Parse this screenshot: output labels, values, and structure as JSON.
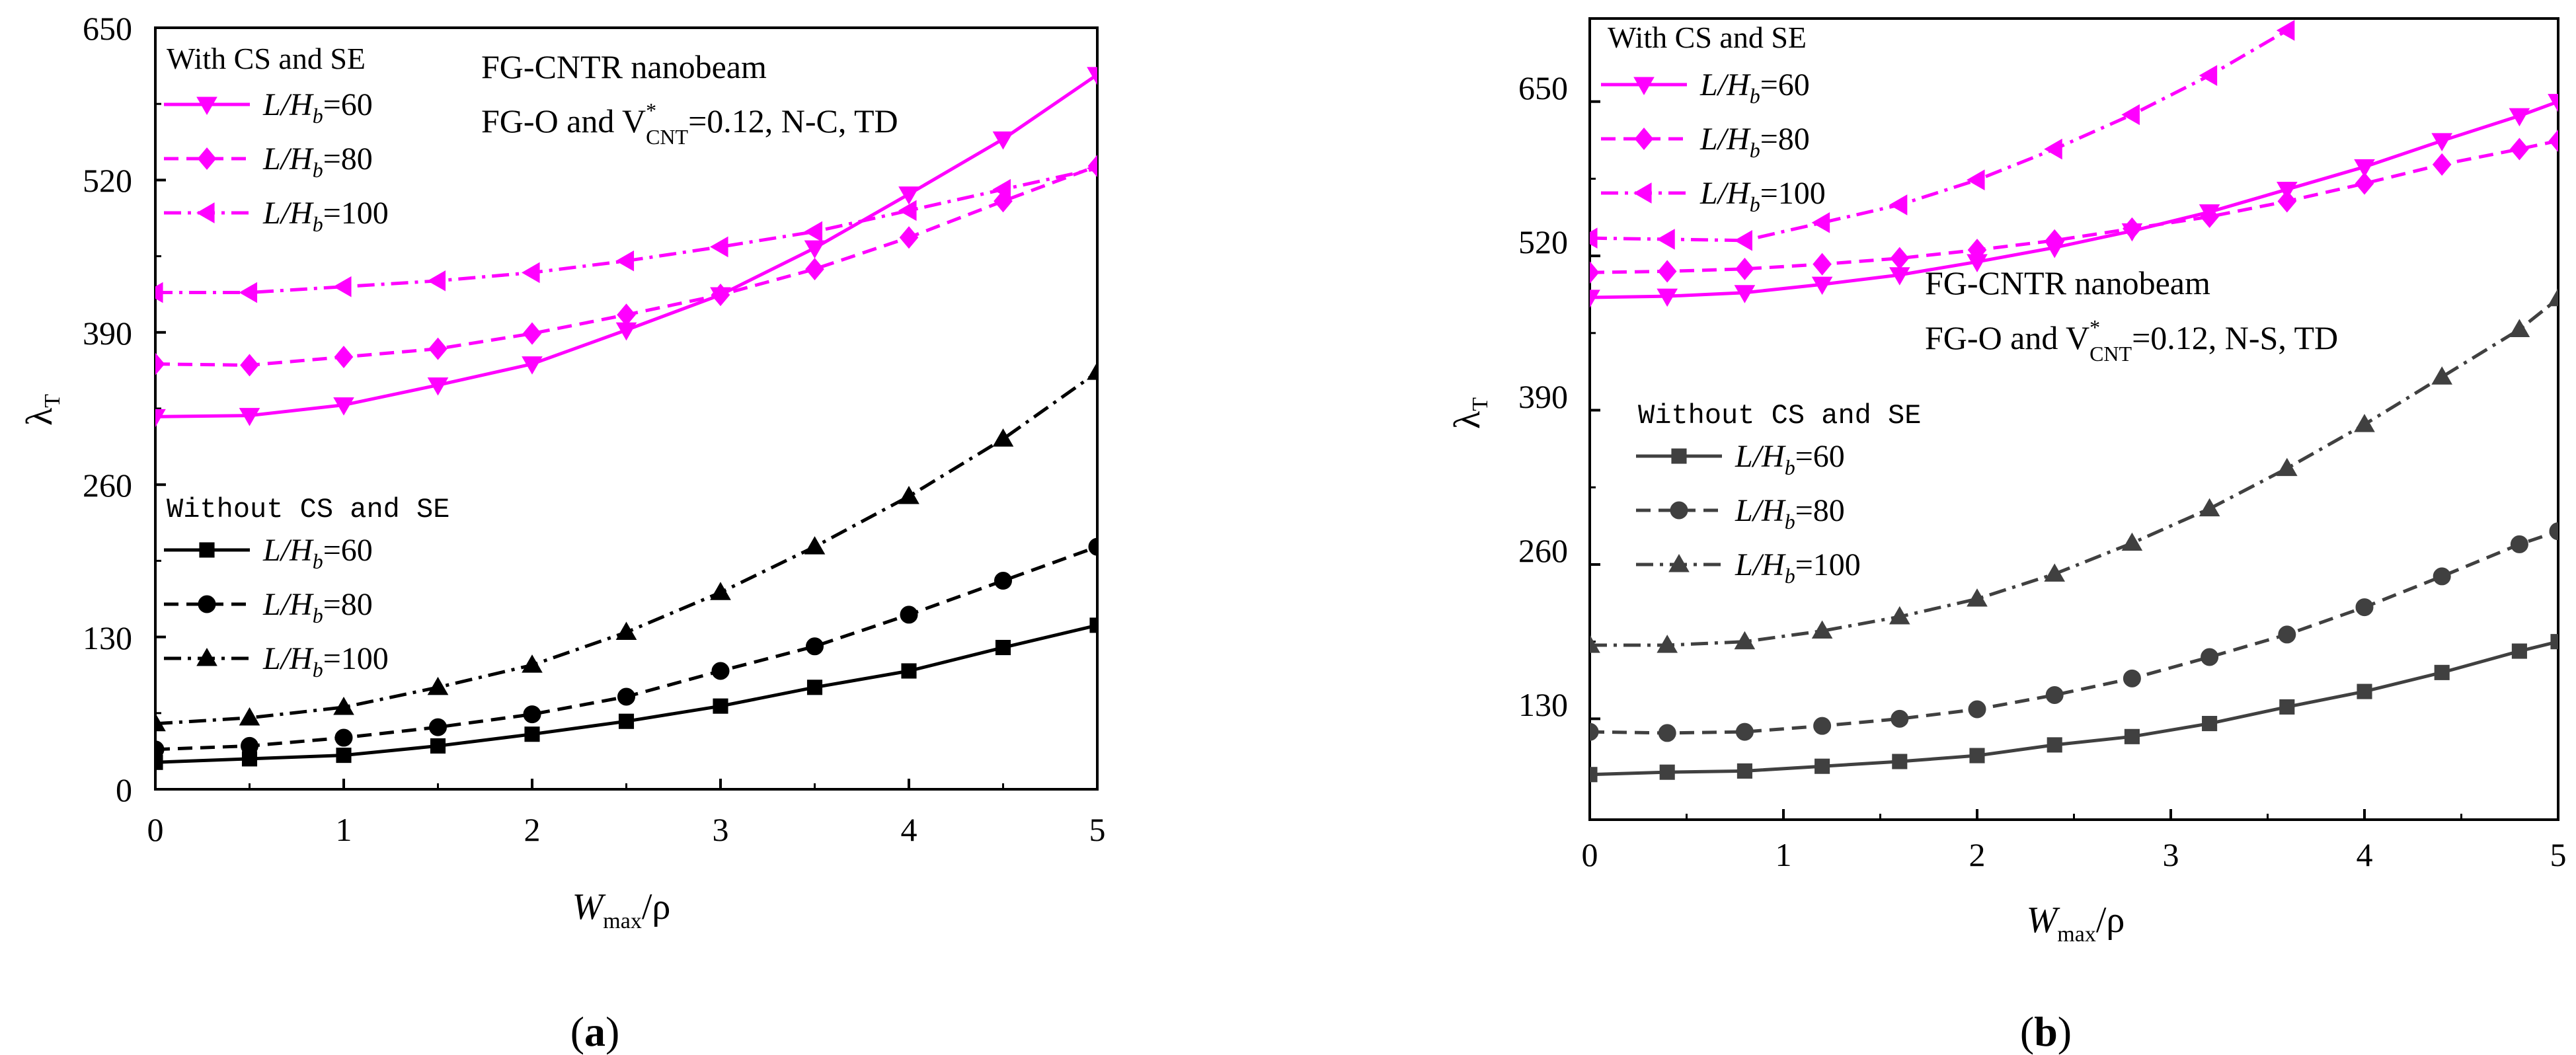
{
  "colors": {
    "with": "#ff00ff",
    "without": "#000000",
    "without_b": "#404040"
  },
  "panels": [
    {
      "caption": "(a)",
      "annotation": [
        "FG-CNTR nanobeam",
        "FG-O and V",
        "*",
        "CNT",
        "=0.12, N-C, TD"
      ],
      "legend_with_title": "With CS and SE",
      "legend_without_title": "Without CS and SE",
      "xlabel": [
        "W",
        "max",
        "/ρ"
      ],
      "ylabel": [
        "λ",
        "T"
      ]
    },
    {
      "caption": "(b)",
      "annotation": [
        "FG-CNTR nanobeam",
        "FG-O and V",
        "*",
        "CNT",
        "=0.12, N-S, TD"
      ],
      "legend_with_title": "With CS and SE",
      "legend_without_title": "Without CS and SE",
      "xlabel": [
        "W",
        "max",
        "/ρ"
      ],
      "ylabel": [
        "λ",
        "T"
      ]
    }
  ],
  "chart_data": [
    {
      "type": "line",
      "title": "",
      "xlabel": "Wmax/ρ",
      "ylabel": "λT",
      "xlim": [
        0,
        5
      ],
      "ylim": [
        0,
        650
      ],
      "xticks": [
        "0",
        "1",
        "2",
        "3",
        "4",
        "5"
      ],
      "yticks": [
        "0",
        "130",
        "260",
        "390",
        "520",
        "650"
      ],
      "series": [
        {
          "name": "L/Hb=60",
          "group": "With CS and SE",
          "marker": "tri-down",
          "dash": "solid",
          "x": [
            0,
            0.5,
            1,
            1.5,
            2,
            2.5,
            3,
            3.5,
            4,
            4.5,
            5
          ],
          "y": [
            318,
            319,
            328,
            345,
            363,
            392,
            422,
            462,
            508,
            555,
            610
          ]
        },
        {
          "name": "L/Hb=80",
          "group": "With CS and SE",
          "marker": "diamond",
          "dash": "dash",
          "x": [
            0,
            0.5,
            1,
            1.5,
            2,
            2.5,
            3,
            3.5,
            4,
            4.5,
            5
          ],
          "y": [
            363,
            362,
            369,
            376,
            389,
            405,
            422,
            444,
            471,
            502,
            532
          ]
        },
        {
          "name": "L/Hb=100",
          "group": "With CS and SE",
          "marker": "tri-left",
          "dash": "dashdot",
          "x": [
            0,
            0.5,
            1,
            1.5,
            2,
            2.5,
            3,
            3.5,
            4,
            4.5,
            5
          ],
          "y": [
            424,
            424,
            429,
            434,
            441,
            451,
            463,
            476,
            494,
            512,
            530
          ]
        },
        {
          "name": "L/Hb=60",
          "group": "Without CS and SE",
          "marker": "square",
          "dash": "solid",
          "x": [
            0,
            0.5,
            1,
            1.5,
            2,
            2.5,
            3,
            3.5,
            4,
            4.5,
            5
          ],
          "y": [
            23,
            26,
            29,
            37,
            47,
            58,
            71,
            87,
            101,
            121,
            140
          ]
        },
        {
          "name": "L/Hb=80",
          "group": "Without CS and SE",
          "marker": "circle",
          "dash": "dash",
          "x": [
            0,
            0.5,
            1,
            1.5,
            2,
            2.5,
            3,
            3.5,
            4,
            4.5,
            5
          ],
          "y": [
            34,
            37,
            44,
            53,
            64,
            79,
            101,
            122,
            149,
            178,
            207
          ]
        },
        {
          "name": "L/Hb=100",
          "group": "Without CS and SE",
          "marker": "triangle",
          "dash": "dashdot",
          "x": [
            0,
            0.5,
            1,
            1.5,
            2,
            2.5,
            3,
            3.5,
            4,
            4.5,
            5
          ],
          "y": [
            56,
            61,
            70,
            87,
            106,
            134,
            168,
            207,
            250,
            299,
            356
          ]
        }
      ]
    },
    {
      "type": "line",
      "title": "",
      "xlabel": "Wmax/ρ",
      "ylabel": "λT",
      "xlim": [
        0,
        5
      ],
      "ylim": [
        45,
        720
      ],
      "xticks": [
        "0",
        "1",
        "2",
        "3",
        "4",
        "5"
      ],
      "yticks": [
        "130",
        "260",
        "390",
        "520",
        "650"
      ],
      "series": [
        {
          "name": "L/Hb=60",
          "group": "With CS and SE",
          "marker": "tri-down",
          "dash": "solid",
          "x": [
            0,
            0.4,
            0.8,
            1.2,
            1.6,
            2,
            2.4,
            2.8,
            3.2,
            3.6,
            4,
            4.4,
            4.8,
            5
          ],
          "y": [
            485,
            486,
            489,
            496,
            504,
            515,
            527,
            541,
            557,
            576,
            595,
            617,
            638,
            650
          ]
        },
        {
          "name": "L/Hb=80",
          "group": "With CS and SE",
          "marker": "diamond",
          "dash": "dash",
          "x": [
            0,
            0.4,
            0.8,
            1.2,
            1.6,
            2,
            2.4,
            2.8,
            3.2,
            3.6,
            4,
            4.4,
            4.8,
            5
          ],
          "y": [
            506,
            507,
            509,
            513,
            518,
            525,
            533,
            543,
            553,
            566,
            581,
            597,
            610,
            617
          ]
        },
        {
          "name": "L/Hb=100",
          "group": "With CS and SE",
          "marker": "tri-left",
          "dash": "dashdot",
          "x": [
            0,
            0.4,
            0.8,
            1.2,
            1.6,
            2,
            2.4,
            2.8,
            3.2,
            3.6
          ],
          "y": [
            535,
            534,
            533,
            548,
            563,
            584,
            610,
            639,
            672,
            710
          ]
        },
        {
          "name": "L/Hb=60",
          "group": "Without CS and SE",
          "marker": "square",
          "dash": "solid",
          "x": [
            0,
            0.4,
            0.8,
            1.2,
            1.6,
            2,
            2.4,
            2.8,
            3.2,
            3.6,
            4,
            4.4,
            4.8,
            5
          ],
          "y": [
            83,
            85,
            86,
            90,
            94,
            99,
            108,
            115,
            126,
            140,
            153,
            169,
            187,
            195
          ]
        },
        {
          "name": "L/Hb=80",
          "group": "Without CS and SE",
          "marker": "circle",
          "dash": "dash",
          "x": [
            0,
            0.4,
            0.8,
            1.2,
            1.6,
            2,
            2.4,
            2.8,
            3.2,
            3.6,
            4,
            4.4,
            4.8,
            5
          ],
          "y": [
            119,
            118,
            119,
            124,
            130,
            138,
            150,
            164,
            182,
            201,
            224,
            250,
            277,
            288
          ]
        },
        {
          "name": "L/Hb=100",
          "group": "Without CS and SE",
          "marker": "triangle",
          "dash": "dashdot",
          "x": [
            0,
            0.4,
            0.8,
            1.2,
            1.6,
            2,
            2.4,
            2.8,
            3.2,
            3.6,
            4,
            4.4,
            4.8,
            5
          ],
          "y": [
            192,
            192,
            195,
            204,
            216,
            231,
            252,
            278,
            307,
            341,
            378,
            418,
            458,
            484
          ]
        }
      ]
    }
  ]
}
